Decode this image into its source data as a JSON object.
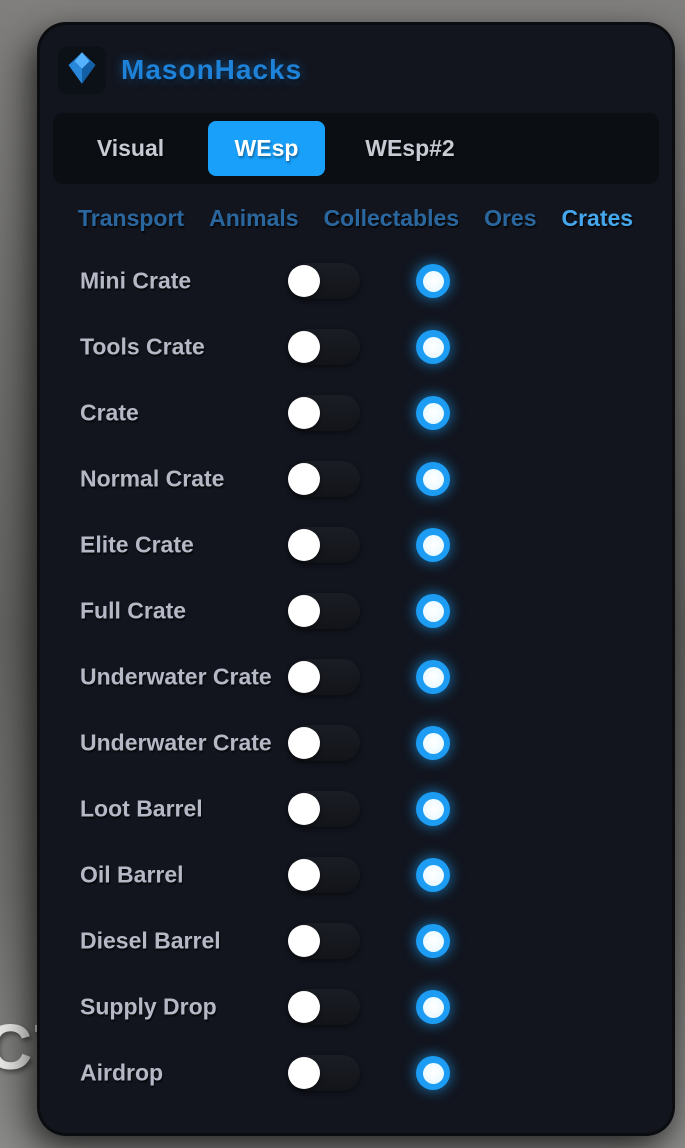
{
  "brand": {
    "name": "MasonHacks",
    "logo_icon": "gem-icon"
  },
  "tabs": [
    {
      "label": "Visual",
      "active": false
    },
    {
      "label": "WEsp",
      "active": true
    },
    {
      "label": "WEsp#2",
      "active": false
    }
  ],
  "subtabs": [
    {
      "label": "Transport",
      "active": false
    },
    {
      "label": "Animals",
      "active": false
    },
    {
      "label": "Collectables",
      "active": false
    },
    {
      "label": "Ores",
      "active": false
    },
    {
      "label": "Crates",
      "active": true
    }
  ],
  "rows": [
    {
      "label": "Mini Crate",
      "enabled": false,
      "color": "#1c9df3"
    },
    {
      "label": "Tools Crate",
      "enabled": false,
      "color": "#1c9df3"
    },
    {
      "label": "Crate",
      "enabled": false,
      "color": "#1c9df3"
    },
    {
      "label": "Normal Crate",
      "enabled": false,
      "color": "#1c9df3"
    },
    {
      "label": "Elite Crate",
      "enabled": false,
      "color": "#1c9df3"
    },
    {
      "label": "Full Crate",
      "enabled": false,
      "color": "#1c9df3"
    },
    {
      "label": "Underwater Crate",
      "enabled": false,
      "color": "#1c9df3"
    },
    {
      "label": "Underwater Crate",
      "enabled": false,
      "color": "#1c9df3"
    },
    {
      "label": "Loot Barrel",
      "enabled": false,
      "color": "#1c9df3"
    },
    {
      "label": "Oil Barrel",
      "enabled": false,
      "color": "#1c9df3"
    },
    {
      "label": "Diesel Barrel",
      "enabled": false,
      "color": "#1c9df3"
    },
    {
      "label": "Supply Drop",
      "enabled": false,
      "color": "#1c9df3"
    },
    {
      "label": "Airdrop",
      "enabled": false,
      "color": "#1c9df3"
    }
  ],
  "background": {
    "partial_text": "CT"
  },
  "colors": {
    "accent": "#18a0fb",
    "swatch_ring": "#1c9df3",
    "panel_bg": "#12151e",
    "brand_text": "#1e82d8",
    "subtab_active": "#45a7ec",
    "subtab_inactive": "#2b679f",
    "row_label": "#b5b9c5",
    "desktop_gray": "#6e6e6c"
  }
}
